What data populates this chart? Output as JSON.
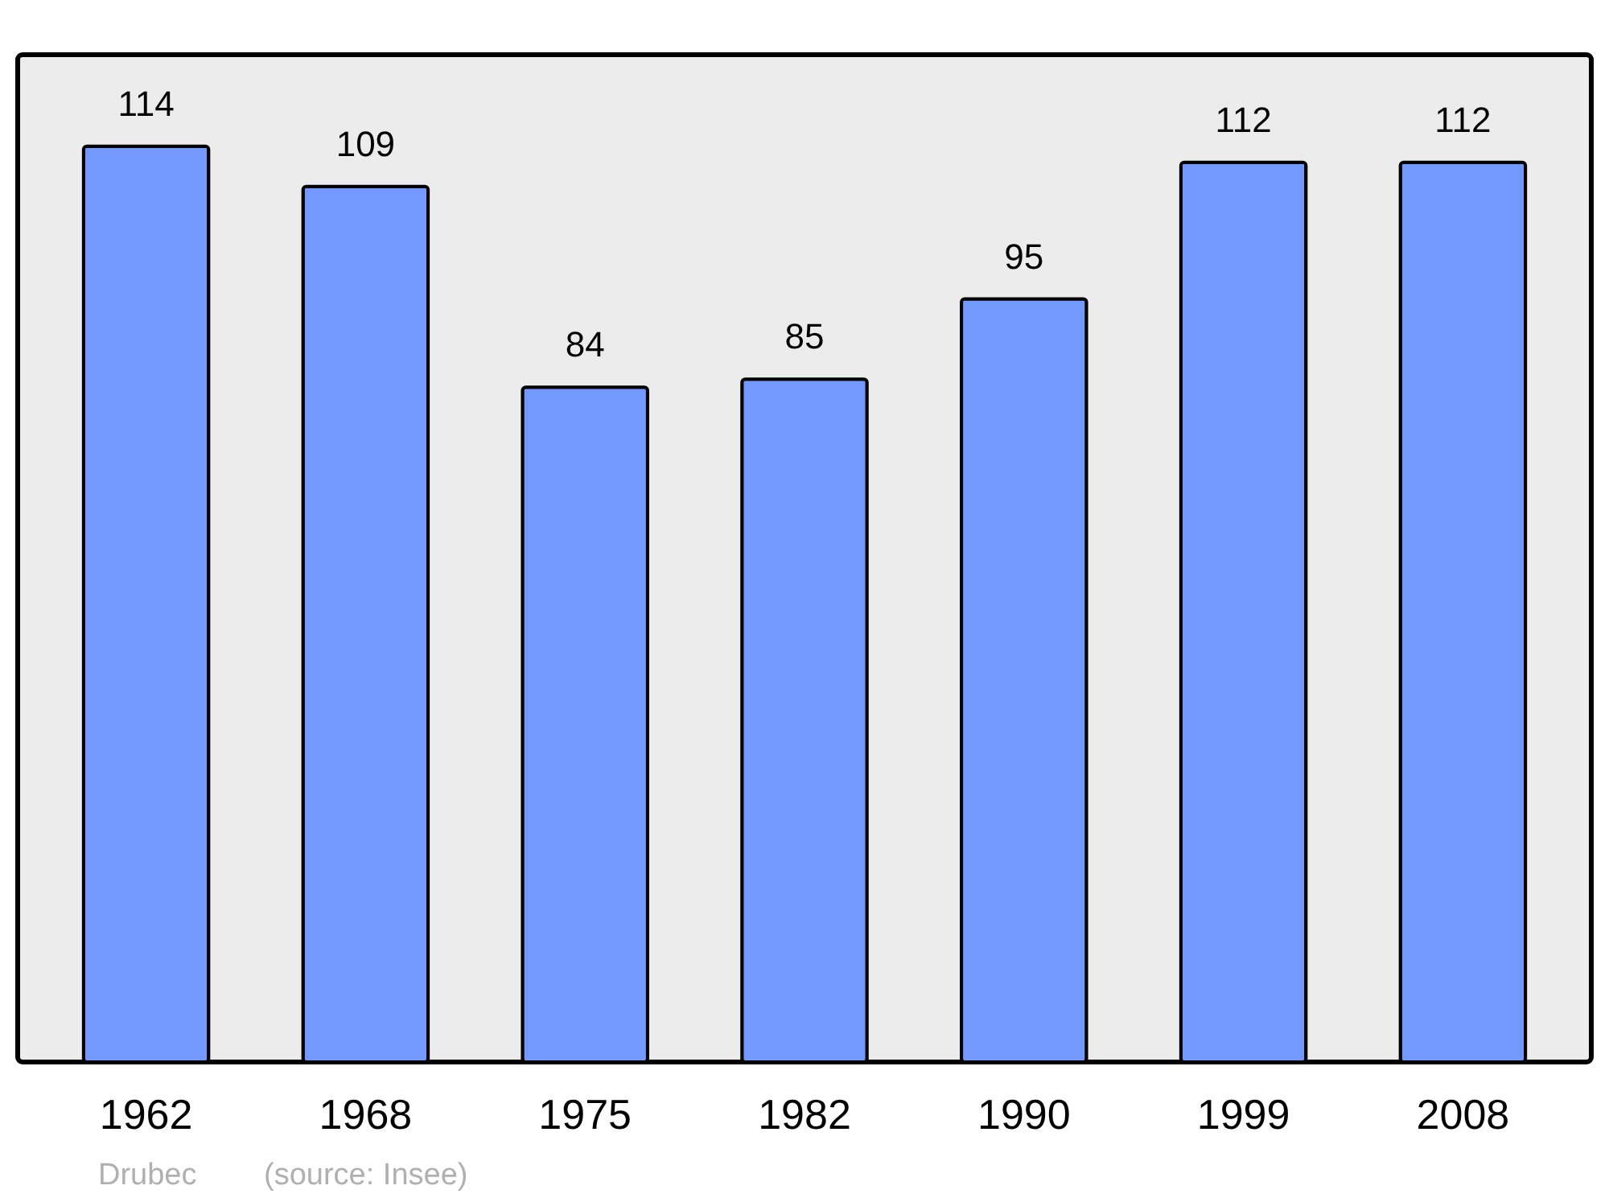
{
  "chart_data": {
    "type": "bar",
    "categories": [
      "1962",
      "1968",
      "1975",
      "1982",
      "1990",
      "1999",
      "2008"
    ],
    "values": [
      114,
      109,
      84,
      85,
      95,
      112,
      112
    ],
    "color": "#7399ff",
    "data_labels": true,
    "grid": false,
    "annotations": [
      "Drubec",
      "(source: Insee)"
    ]
  }
}
